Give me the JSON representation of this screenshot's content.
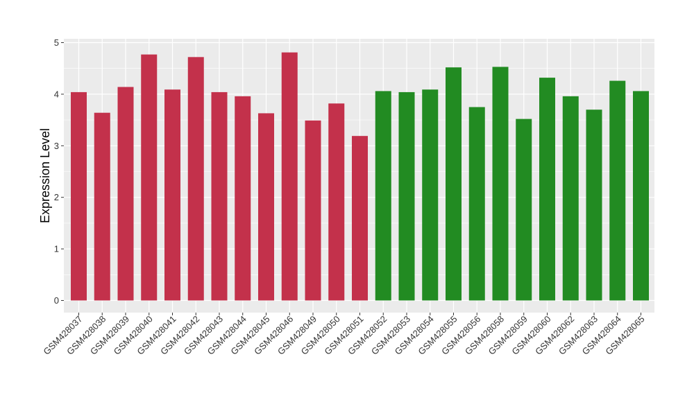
{
  "chart_data": {
    "type": "bar",
    "title": "",
    "xlabel": "",
    "ylabel": "Expression Level",
    "ylim": [
      0,
      5
    ],
    "yticks": [
      0,
      1,
      2,
      3,
      4,
      5
    ],
    "grid": true,
    "categories": [
      "GSM428037",
      "GSM428038",
      "GSM428039",
      "GSM428040",
      "GSM428041",
      "GSM428042",
      "GSM428043",
      "GSM428044",
      "GSM428045",
      "GSM428046",
      "GSM428049",
      "GSM428050",
      "GSM428051",
      "GSM428052",
      "GSM428053",
      "GSM428054",
      "GSM428055",
      "GSM428056",
      "GSM428058",
      "GSM428059",
      "GSM428060",
      "GSM428062",
      "GSM428063",
      "GSM428064",
      "GSM428065"
    ],
    "values": [
      4.04,
      3.64,
      4.14,
      4.77,
      4.09,
      4.72,
      4.04,
      3.96,
      3.63,
      4.81,
      3.49,
      3.82,
      3.19,
      4.06,
      4.04,
      4.09,
      4.52,
      3.75,
      4.53,
      3.52,
      4.32,
      3.96,
      3.7,
      4.26,
      4.06
    ],
    "groups": [
      0,
      0,
      0,
      0,
      0,
      0,
      0,
      0,
      0,
      0,
      0,
      0,
      0,
      1,
      1,
      1,
      1,
      1,
      1,
      1,
      1,
      1,
      1,
      1,
      1
    ],
    "colors": [
      "#c3314b",
      "#228b22"
    ],
    "panel_background": "#ebebeb",
    "grid_color": "#ffffff"
  }
}
